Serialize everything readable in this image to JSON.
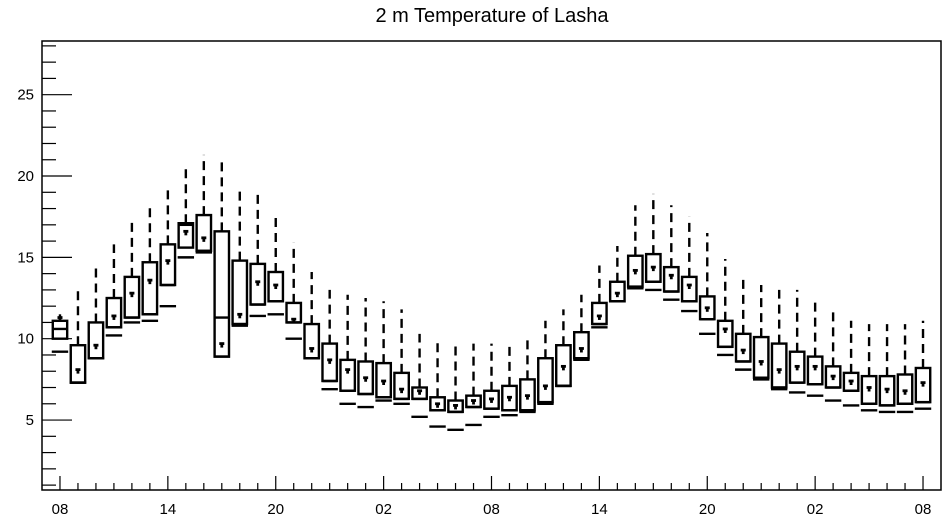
{
  "chart_data": {
    "type": "boxplot",
    "title": "2 m Temperature of Lasha",
    "ylim": [
      0.7,
      28.3
    ],
    "y_ticks": [
      5,
      10,
      15,
      20,
      25
    ],
    "y_tick_labels": [
      "5",
      "10",
      "15",
      "20",
      "25"
    ],
    "x_tick_labels": [
      "08",
      "14",
      "20",
      "02",
      "08",
      "14",
      "20",
      "02",
      "08"
    ],
    "x_tick_positions": [
      0,
      6,
      12,
      18,
      24,
      30,
      36,
      42,
      48
    ],
    "x_range": [
      -1,
      49
    ],
    "time_step_hours": 1,
    "boxes": [
      {
        "x": 0,
        "box_low": 10.0,
        "box_high": 11.1,
        "median": 10.6,
        "mean": 11.3,
        "low": 9.2,
        "high": 11.5
      },
      {
        "x": 1,
        "box_low": 7.3,
        "box_high": 9.6,
        "median": 7.3,
        "mean": 8.1,
        "low": 7.3,
        "high": 13.0
      },
      {
        "x": 2,
        "box_low": 8.8,
        "box_high": 11.0,
        "median": 8.8,
        "mean": 9.6,
        "low": 8.8,
        "high": 14.5
      },
      {
        "x": 3,
        "box_low": 10.7,
        "box_high": 12.5,
        "median": 10.7,
        "mean": 11.4,
        "low": 10.2,
        "high": 15.8
      },
      {
        "x": 4,
        "box_low": 11.3,
        "box_high": 13.8,
        "median": 11.3,
        "mean": 12.8,
        "low": 11.0,
        "high": 17.2
      },
      {
        "x": 5,
        "box_low": 11.5,
        "box_high": 14.7,
        "median": 11.5,
        "mean": 13.6,
        "low": 11.1,
        "high": 18.2
      },
      {
        "x": 6,
        "box_low": 13.3,
        "box_high": 15.8,
        "median": 13.3,
        "mean": 14.8,
        "low": 12.0,
        "high": 19.3
      },
      {
        "x": 7,
        "box_low": 15.6,
        "box_high": 17.1,
        "median": 17.0,
        "mean": 16.6,
        "low": 15.0,
        "high": 20.6
      },
      {
        "x": 8,
        "box_low": 15.4,
        "box_high": 17.6,
        "median": 15.4,
        "mean": 16.2,
        "low": 15.3,
        "high": 21.3
      },
      {
        "x": 9,
        "box_low": 8.9,
        "box_high": 16.6,
        "median": 11.3,
        "mean": 9.7,
        "low": 8.9,
        "high": 21.2
      },
      {
        "x": 10,
        "box_low": 10.9,
        "box_high": 14.8,
        "median": 10.9,
        "mean": 11.5,
        "low": 10.8,
        "high": 19.2
      },
      {
        "x": 11,
        "box_low": 12.1,
        "box_high": 14.6,
        "median": 12.1,
        "mean": 13.5,
        "low": 11.4,
        "high": 19.1
      },
      {
        "x": 12,
        "box_low": 12.3,
        "box_high": 14.1,
        "median": 12.3,
        "mean": 13.3,
        "low": 11.5,
        "high": 17.7
      },
      {
        "x": 13,
        "box_low": 11.0,
        "box_high": 12.2,
        "median": 11.0,
        "mean": 11.2,
        "low": 10.0,
        "high": 15.9
      },
      {
        "x": 14,
        "box_low": 8.8,
        "box_high": 10.9,
        "median": 8.8,
        "mean": 9.4,
        "low": 8.8,
        "high": 14.1
      },
      {
        "x": 15,
        "box_low": 7.4,
        "box_high": 9.7,
        "median": 7.4,
        "mean": 8.7,
        "low": 6.9,
        "high": 13.0
      },
      {
        "x": 16,
        "box_low": 6.8,
        "box_high": 8.7,
        "median": 6.8,
        "mean": 8.1,
        "low": 6.0,
        "high": 12.7
      },
      {
        "x": 17,
        "box_low": 6.6,
        "box_high": 8.6,
        "median": 6.6,
        "mean": 7.6,
        "low": 5.8,
        "high": 12.5
      },
      {
        "x": 18,
        "box_low": 6.4,
        "box_high": 8.5,
        "median": 6.4,
        "mean": 7.4,
        "low": 6.2,
        "high": 12.3
      },
      {
        "x": 19,
        "box_low": 6.3,
        "box_high": 7.9,
        "median": 6.3,
        "mean": 6.9,
        "low": 6.0,
        "high": 11.8
      },
      {
        "x": 20,
        "box_low": 6.3,
        "box_high": 7.0,
        "median": 6.3,
        "mean": 6.8,
        "low": 5.2,
        "high": 10.3
      },
      {
        "x": 21,
        "box_low": 5.6,
        "box_high": 6.4,
        "median": 5.6,
        "mean": 6.0,
        "low": 4.6,
        "high": 10.0
      },
      {
        "x": 22,
        "box_low": 5.5,
        "box_high": 6.2,
        "median": 5.5,
        "mean": 5.9,
        "low": 4.4,
        "high": 9.6
      },
      {
        "x": 23,
        "box_low": 5.8,
        "box_high": 6.5,
        "median": 5.8,
        "mean": 6.2,
        "low": 4.7,
        "high": 9.7
      },
      {
        "x": 24,
        "box_low": 5.7,
        "box_high": 6.8,
        "median": 5.7,
        "mean": 6.3,
        "low": 5.2,
        "high": 9.7
      },
      {
        "x": 25,
        "box_low": 5.6,
        "box_high": 7.1,
        "median": 5.6,
        "mean": 6.4,
        "low": 5.3,
        "high": 9.8
      },
      {
        "x": 26,
        "box_low": 5.6,
        "box_high": 7.5,
        "median": 5.6,
        "mean": 6.5,
        "low": 5.5,
        "high": 10.1
      },
      {
        "x": 27,
        "box_low": 6.1,
        "box_high": 8.8,
        "median": 6.1,
        "mean": 7.1,
        "low": 6.0,
        "high": 11.1
      },
      {
        "x": 28,
        "box_low": 7.1,
        "box_high": 9.6,
        "median": 7.1,
        "mean": 8.3,
        "low": 7.1,
        "high": 11.8
      },
      {
        "x": 29,
        "box_low": 8.8,
        "box_high": 10.4,
        "median": 8.8,
        "mean": 9.4,
        "low": 8.7,
        "high": 12.7
      },
      {
        "x": 30,
        "box_low": 10.9,
        "box_high": 12.2,
        "median": 10.9,
        "mean": 11.4,
        "low": 10.7,
        "high": 14.5
      },
      {
        "x": 31,
        "box_low": 12.3,
        "box_high": 13.5,
        "median": 12.3,
        "mean": 12.8,
        "low": 12.3,
        "high": 15.7
      },
      {
        "x": 32,
        "box_low": 13.2,
        "box_high": 15.1,
        "median": 13.2,
        "mean": 14.2,
        "low": 13.1,
        "high": 18.2
      },
      {
        "x": 33,
        "box_low": 13.5,
        "box_high": 15.2,
        "median": 13.5,
        "mean": 14.4,
        "low": 13.0,
        "high": 18.9
      },
      {
        "x": 34,
        "box_low": 12.9,
        "box_high": 14.4,
        "median": 12.9,
        "mean": 13.9,
        "low": 12.4,
        "high": 18.2
      },
      {
        "x": 35,
        "box_low": 12.3,
        "box_high": 13.8,
        "median": 12.3,
        "mean": 13.3,
        "low": 11.7,
        "high": 17.5
      },
      {
        "x": 36,
        "box_low": 11.2,
        "box_high": 12.6,
        "median": 11.2,
        "mean": 11.9,
        "low": 10.3,
        "high": 16.5
      },
      {
        "x": 37,
        "box_low": 9.5,
        "box_high": 11.1,
        "median": 9.5,
        "mean": 10.6,
        "low": 9.0,
        "high": 14.9
      },
      {
        "x": 38,
        "box_low": 8.6,
        "box_high": 10.3,
        "median": 8.6,
        "mean": 9.3,
        "low": 8.1,
        "high": 13.9
      },
      {
        "x": 39,
        "box_low": 7.6,
        "box_high": 10.1,
        "median": 7.6,
        "mean": 8.6,
        "low": 7.5,
        "high": 13.3
      },
      {
        "x": 40,
        "box_low": 7.0,
        "box_high": 9.7,
        "median": 7.0,
        "mean": 8.1,
        "low": 6.9,
        "high": 13.0
      },
      {
        "x": 41,
        "box_low": 7.3,
        "box_high": 9.2,
        "median": 7.3,
        "mean": 8.3,
        "low": 6.7,
        "high": 13.0
      },
      {
        "x": 42,
        "box_low": 7.2,
        "box_high": 8.9,
        "median": 7.2,
        "mean": 8.3,
        "low": 6.5,
        "high": 12.5
      },
      {
        "x": 43,
        "box_low": 7.0,
        "box_high": 8.3,
        "median": 7.0,
        "mean": 7.7,
        "low": 6.2,
        "high": 11.7
      },
      {
        "x": 44,
        "box_low": 6.8,
        "box_high": 7.9,
        "median": 6.8,
        "mean": 7.4,
        "low": 5.9,
        "high": 11.1
      },
      {
        "x": 45,
        "box_low": 6.0,
        "box_high": 7.7,
        "median": 6.0,
        "mean": 7.0,
        "low": 5.6,
        "high": 10.9
      },
      {
        "x": 46,
        "box_low": 5.9,
        "box_high": 7.7,
        "median": 5.9,
        "mean": 6.9,
        "low": 5.5,
        "high": 10.9
      },
      {
        "x": 47,
        "box_low": 6.0,
        "box_high": 7.8,
        "median": 6.0,
        "mean": 6.8,
        "low": 5.5,
        "high": 10.9
      },
      {
        "x": 48,
        "box_low": 6.1,
        "box_high": 8.2,
        "median": 6.1,
        "mean": 7.3,
        "low": 5.7,
        "high": 11.1
      }
    ]
  }
}
